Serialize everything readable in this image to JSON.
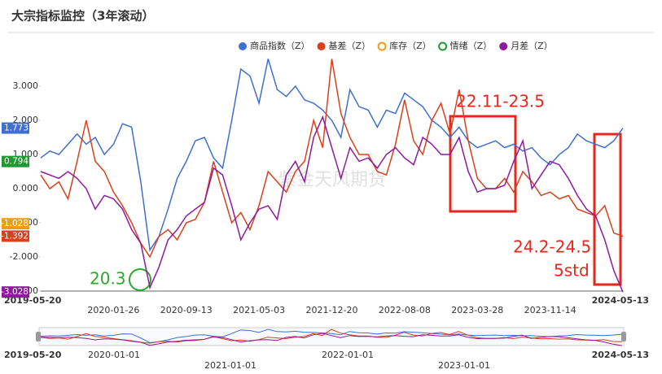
{
  "chart_data": {
    "type": "line",
    "title": "大宗指标监控（3年滚动）",
    "watermark": "紫金天风期货",
    "categories": [
      "2019-05-20",
      null,
      null,
      null,
      null,
      null,
      null,
      null,
      "2020-01-26",
      null,
      null,
      null,
      null,
      null,
      null,
      null,
      "2020-09-13",
      null,
      null,
      null,
      null,
      null,
      null,
      null,
      "2021-05-03",
      null,
      null,
      null,
      null,
      null,
      null,
      null,
      "2021-12-20",
      null,
      null,
      null,
      null,
      null,
      null,
      null,
      "2022-08-08",
      null,
      null,
      null,
      null,
      null,
      null,
      null,
      "2023-03-28",
      null,
      null,
      null,
      null,
      null,
      null,
      null,
      "2023-11-14",
      null,
      null,
      null,
      null,
      null,
      null,
      null,
      "2024-05-13"
    ],
    "ylim": [
      -3,
      4.5
    ],
    "yticks": [
      {
        "value": -3,
        "label": "-3.000"
      },
      {
        "value": -2,
        "label": "-2.000"
      },
      {
        "value": -1,
        "label": "-1.000"
      },
      {
        "value": 0,
        "label": "0.000"
      },
      {
        "value": 1,
        "label": "1.000"
      },
      {
        "value": 2,
        "label": "2.000"
      },
      {
        "value": 3,
        "label": "3.000"
      }
    ],
    "grid": false,
    "series": [
      {
        "name": "商品指数（Z）",
        "color": "#3f6fd1",
        "visible": true,
        "values": [
          0.9,
          1.1,
          1.0,
          1.3,
          1.6,
          1.3,
          1.5,
          1.0,
          1.3,
          1.9,
          1.8,
          0.2,
          -1.8,
          -1.4,
          -0.6,
          0.3,
          0.8,
          1.4,
          1.5,
          0.9,
          0.6,
          2.0,
          3.5,
          3.3,
          2.5,
          3.8,
          2.9,
          2.7,
          3.0,
          2.6,
          2.5,
          2.3,
          2.0,
          1.5,
          2.9,
          2.4,
          2.3,
          1.8,
          2.3,
          2.2,
          2.8,
          2.6,
          2.4,
          2.0,
          1.8,
          1.5,
          1.8,
          1.4,
          1.2,
          1.3,
          1.4,
          1.2,
          1.3,
          1.1,
          1.2,
          0.9,
          0.7,
          1.0,
          1.2,
          1.6,
          1.4,
          1.3,
          1.2,
          1.4,
          1.773
        ]
      },
      {
        "name": "基差（Z）",
        "color": "#d9401c",
        "visible": true,
        "values": [
          0.4,
          0.0,
          0.2,
          -0.3,
          0.8,
          2.0,
          0.8,
          0.5,
          -0.1,
          -0.5,
          -1.0,
          -1.6,
          -2.0,
          -1.4,
          -1.2,
          -1.5,
          -1.0,
          -0.9,
          -0.4,
          0.8,
          -0.1,
          -1.0,
          -0.7,
          -1.2,
          -0.5,
          0.5,
          0.2,
          -0.1,
          0.5,
          0.8,
          2.0,
          1.2,
          3.8,
          2.2,
          1.5,
          1.0,
          1.0,
          0.5,
          0.4,
          1.3,
          2.6,
          1.4,
          1.0,
          2.0,
          2.5,
          1.6,
          2.9,
          1.4,
          0.3,
          0.0,
          0.0,
          0.3,
          -0.1,
          0.5,
          0.2,
          -0.2,
          -0.1,
          -0.3,
          -0.2,
          -0.6,
          -0.7,
          -0.8,
          -0.5,
          -1.3,
          -1.392
        ]
      },
      {
        "name": "库存（Z）",
        "color": "#f39c12",
        "visible": false,
        "last": -1.028
      },
      {
        "name": "情绪（Z）",
        "color": "#1e9a2e",
        "visible": false,
        "last": 0.794
      },
      {
        "name": "月差（Z）",
        "color": "#8e1a9e",
        "visible": true,
        "values": [
          0.5,
          0.4,
          0.3,
          0.5,
          0.3,
          0.0,
          -0.6,
          -0.2,
          -0.3,
          -0.6,
          -1.2,
          -1.6,
          -2.9,
          -2.3,
          -1.5,
          -1.2,
          -0.8,
          -0.6,
          -0.4,
          0.6,
          0.4,
          -0.5,
          -1.5,
          -1.0,
          -0.6,
          -0.5,
          -0.9,
          0.4,
          0.8,
          0.2,
          1.5,
          2.1,
          1.2,
          0.3,
          1.2,
          0.8,
          0.9,
          0.6,
          1.0,
          1.2,
          0.9,
          0.7,
          1.5,
          1.3,
          1.0,
          1.0,
          1.5,
          0.5,
          -0.1,
          0.0,
          0.0,
          0.1,
          0.8,
          1.4,
          0.0,
          0.4,
          0.8,
          0.7,
          0.3,
          -0.2,
          -0.6,
          -0.8,
          -1.5,
          -2.4,
          -3.028
        ]
      }
    ],
    "annotations": [
      "22.11-23.5",
      "24.2-24.5",
      "5std",
      "20.3"
    ],
    "navigator": {
      "labels": [
        "2019-05-20",
        "2020-01-01",
        "2021-01-01",
        "2022-01-01",
        "2023-01-01",
        "2024-05-13"
      ]
    }
  }
}
